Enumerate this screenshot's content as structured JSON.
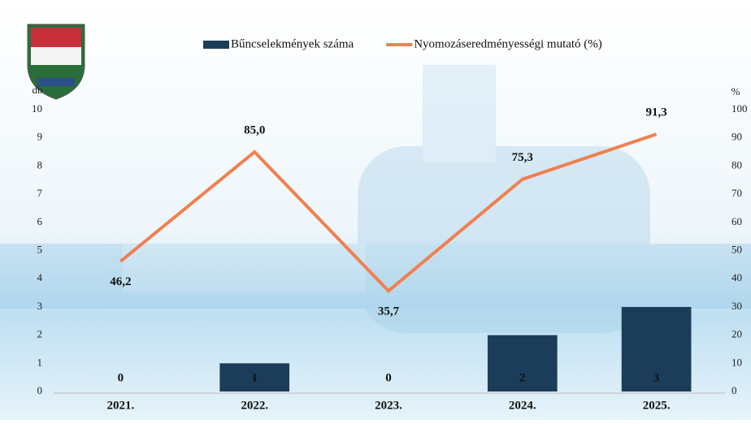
{
  "chart_data": {
    "type": "bar",
    "categories": [
      "2021.",
      "2022.",
      "2023.",
      "2024.",
      "2025."
    ],
    "series": [
      {
        "name": "Bűncselekmények száma",
        "type": "bar",
        "color": "#1c3d5a",
        "axis": "y",
        "values": [
          0,
          1,
          0,
          2,
          3
        ]
      },
      {
        "name": "Nyomozáseredményességi mutató (%)",
        "type": "line",
        "color": "#f08050",
        "axis": "y2",
        "values": [
          46.2,
          85.0,
          35.7,
          75.3,
          91.3
        ],
        "value_labels": [
          "46,2",
          "85,0",
          "35,7",
          "75,3",
          "91,3"
        ]
      }
    ],
    "y_label": "db",
    "y2_label": "%",
    "ylim": [
      0,
      10
    ],
    "yticks": [
      0,
      1,
      2,
      3,
      4,
      5,
      6,
      7,
      8,
      9,
      10
    ],
    "y2lim": [
      0,
      100
    ],
    "y2ticks": [
      0,
      10,
      20,
      30,
      40,
      50,
      60,
      70,
      80,
      90,
      100
    ],
    "legend": "top"
  }
}
